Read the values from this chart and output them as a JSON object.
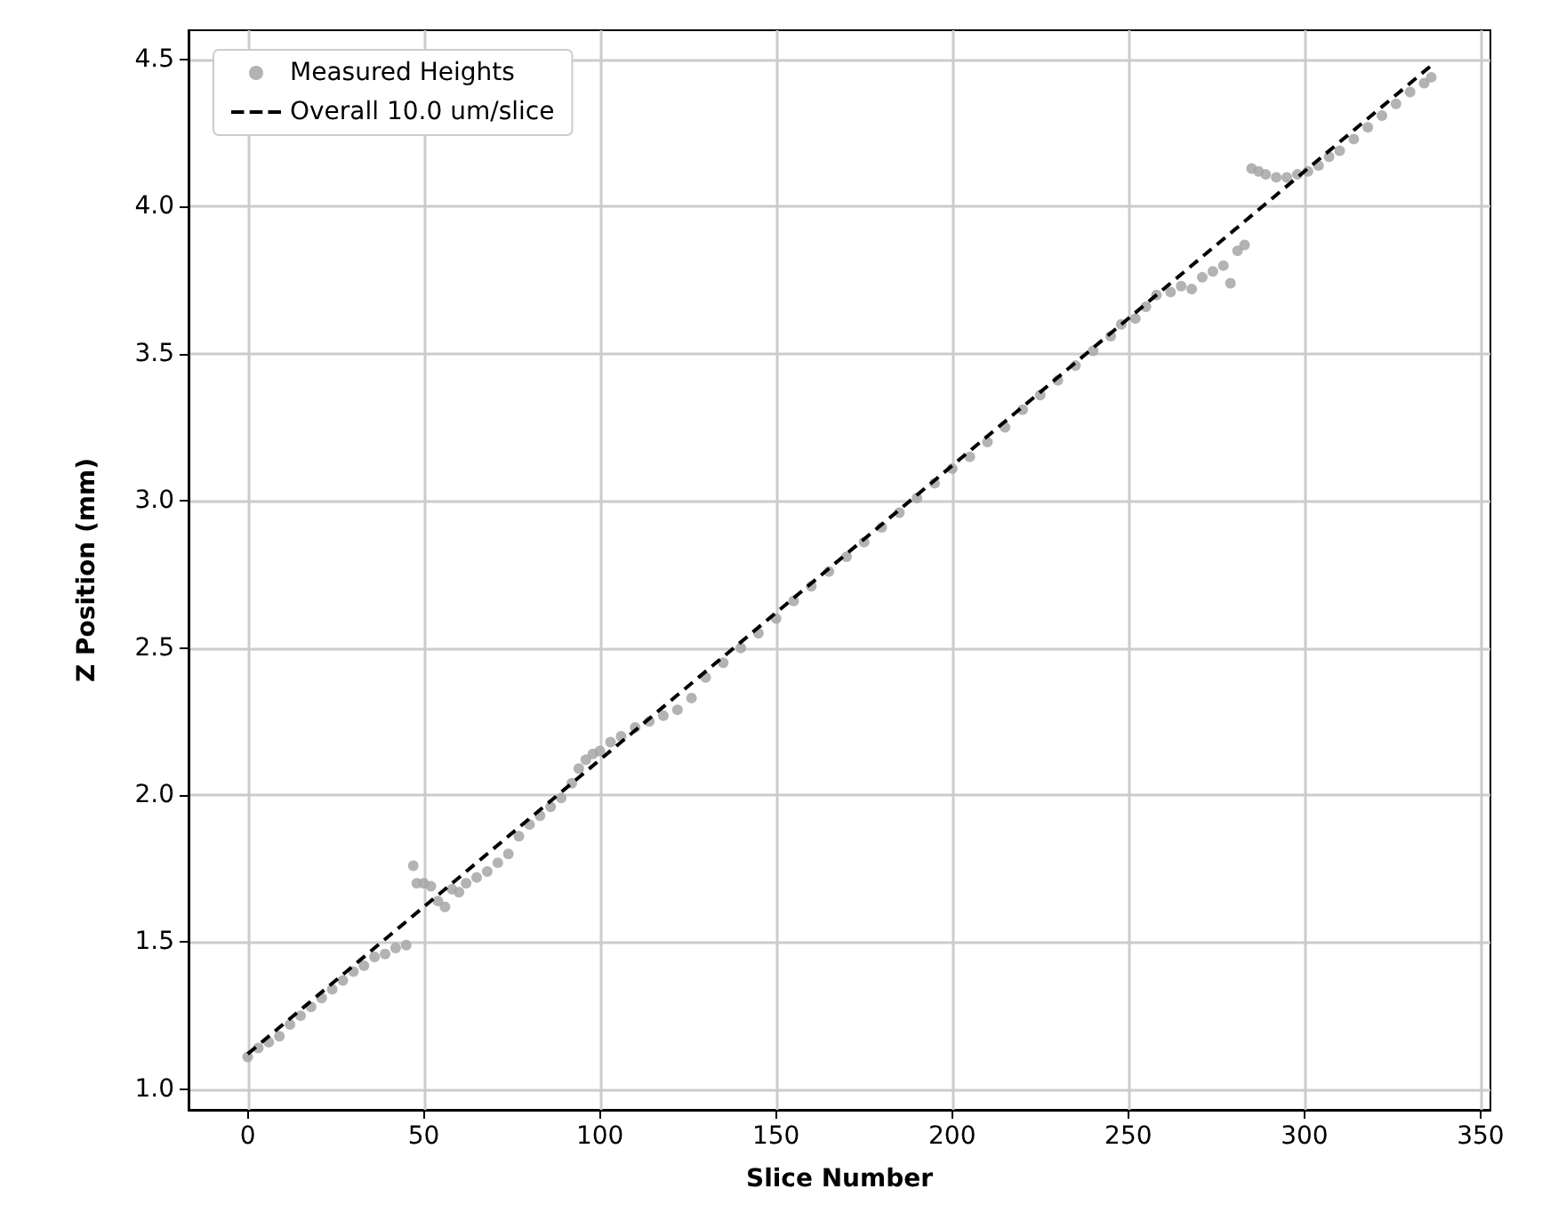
{
  "chart_data": {
    "type": "scatter",
    "xlabel": "Slice Number",
    "ylabel": "Z Position (mm)",
    "xlim": [
      -16.8,
      352.8
    ],
    "ylim": [
      0.93,
      4.6
    ],
    "xticks": [
      0,
      50,
      100,
      150,
      200,
      250,
      300,
      350
    ],
    "yticks": [
      {
        "value": 1,
        "label": "1.0"
      },
      {
        "value": 1.5,
        "label": "1.5"
      },
      {
        "value": 2,
        "label": "2.0"
      },
      {
        "value": 2.5,
        "label": "2.5"
      },
      {
        "value": 3,
        "label": "3.0"
      },
      {
        "value": 3.5,
        "label": "3.5"
      },
      {
        "value": 4,
        "label": "4.0"
      },
      {
        "value": 4.5,
        "label": "4.5"
      }
    ],
    "grid": true,
    "legend": "top left",
    "series": [
      {
        "name": "Measured Heights",
        "color": "#a6a6a6",
        "marker": "circle",
        "x": [
          0,
          3,
          6,
          9,
          12,
          15,
          18,
          21,
          24,
          27,
          30,
          33,
          36,
          39,
          42,
          45,
          47,
          48,
          50,
          52,
          54,
          56,
          58,
          60,
          62,
          65,
          68,
          71,
          74,
          77,
          80,
          83,
          86,
          89,
          92,
          94,
          96,
          98,
          100,
          103,
          106,
          110,
          114,
          118,
          122,
          126,
          130,
          135,
          140,
          145,
          150,
          155,
          160,
          165,
          170,
          175,
          180,
          185,
          190,
          195,
          200,
          205,
          210,
          215,
          220,
          225,
          230,
          235,
          240,
          245,
          248,
          252,
          255,
          258,
          262,
          265,
          268,
          271,
          274,
          277,
          279,
          281,
          283,
          285,
          287,
          289,
          292,
          295,
          298,
          301,
          304,
          307,
          310,
          314,
          318,
          322,
          326,
          330,
          334,
          336
        ],
        "values": [
          1.11,
          1.14,
          1.16,
          1.18,
          1.22,
          1.25,
          1.28,
          1.31,
          1.34,
          1.37,
          1.4,
          1.42,
          1.45,
          1.46,
          1.48,
          1.49,
          1.76,
          1.7,
          1.7,
          1.69,
          1.64,
          1.62,
          1.68,
          1.67,
          1.7,
          1.72,
          1.74,
          1.77,
          1.8,
          1.86,
          1.9,
          1.93,
          1.96,
          1.99,
          2.04,
          2.09,
          2.12,
          2.14,
          2.15,
          2.18,
          2.2,
          2.23,
          2.25,
          2.27,
          2.29,
          2.33,
          2.4,
          2.45,
          2.5,
          2.55,
          2.6,
          2.66,
          2.71,
          2.76,
          2.81,
          2.86,
          2.91,
          2.96,
          3.01,
          3.06,
          3.11,
          3.15,
          3.2,
          3.25,
          3.31,
          3.36,
          3.41,
          3.46,
          3.51,
          3.56,
          3.6,
          3.62,
          3.66,
          3.7,
          3.71,
          3.73,
          3.72,
          3.76,
          3.78,
          3.8,
          3.74,
          3.85,
          3.87,
          4.13,
          4.12,
          4.11,
          4.1,
          4.1,
          4.11,
          4.12,
          4.14,
          4.17,
          4.19,
          4.23,
          4.27,
          4.31,
          4.35,
          4.39,
          4.42,
          4.44
        ]
      },
      {
        "name": "Overall 10.0 um/slice",
        "type": "line",
        "color": "#000000",
        "line_style": "dashed",
        "marker": "none",
        "x": [
          0,
          336
        ],
        "values": [
          1.12,
          4.48
        ]
      }
    ]
  }
}
